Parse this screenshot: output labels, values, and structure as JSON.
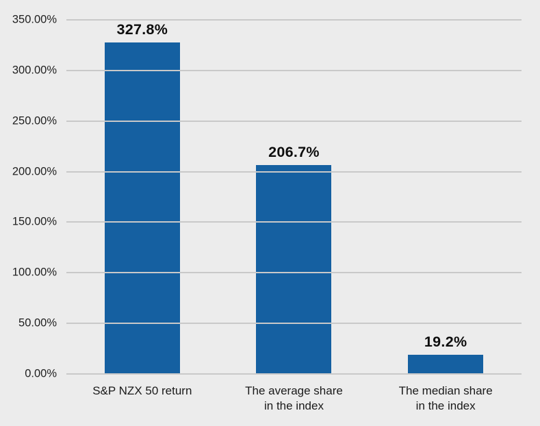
{
  "chart_data": {
    "type": "bar",
    "title": "",
    "xlabel": "",
    "ylabel": "",
    "categories": [
      "S&P NZX 50 return",
      "The average share\nin the index",
      "The median share\nin the index"
    ],
    "values": [
      327.8,
      206.7,
      19.2
    ],
    "data_labels": [
      "327.8%",
      "206.7%",
      "19.2%"
    ],
    "ylim": [
      0,
      350
    ],
    "ytick_step": 50,
    "ytick_labels": [
      "0.00%",
      "50.00%",
      "100.00%",
      "150.00%",
      "200.00%",
      "250.00%",
      "300.00%",
      "350.00%"
    ],
    "grid": true,
    "legend": false,
    "colors": {
      "bar": "#1560A1",
      "background": "#ECECEC",
      "gridline": "#C9C9C9",
      "tick_text": "#1F1F1F",
      "data_label_text": "#0D0D0D"
    }
  }
}
